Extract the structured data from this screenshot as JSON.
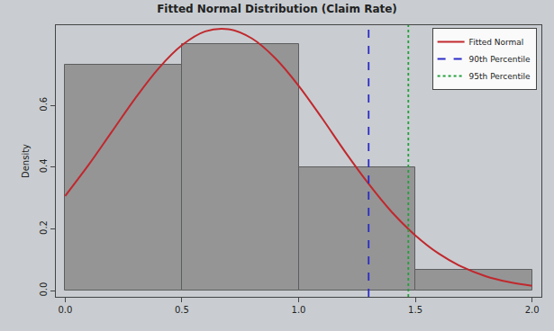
{
  "chart_data": {
    "type": "histogram",
    "title": "Fitted Normal Distribution (Claim Rate)",
    "y_label": "Density",
    "bins": [
      0,
      0.5,
      1,
      1.5,
      2
    ],
    "values": [
      0.733,
      0.8,
      0.4,
      0.067
    ],
    "color": "#8c8c8c",
    "series": [
      {
        "name": "Fitted Normal",
        "type": "line",
        "color": "#c0282d",
        "line_style": "solid",
        "x": [
          0,
          0.1,
          0.2,
          0.3,
          0.4,
          0.5,
          0.6,
          0.7,
          0.8,
          0.9,
          1.0,
          1.1,
          1.2,
          1.3,
          1.4,
          1.5,
          1.6,
          1.7,
          1.8,
          1.9,
          2.0
        ],
        "values": [
          0.307,
          0.407,
          0.515,
          0.623,
          0.72,
          0.795,
          0.84,
          0.847,
          0.817,
          0.753,
          0.664,
          0.559,
          0.449,
          0.346,
          0.254,
          0.179,
          0.12,
          0.077,
          0.047,
          0.028,
          0.016
        ]
      },
      {
        "name": "90th Percentile",
        "type": "vline",
        "color": "#2b2bc8",
        "line_style": "dash",
        "x": [
          1.3
        ]
      },
      {
        "name": "95th Percentile",
        "type": "vline",
        "color": "#22a03a",
        "line_style": "dot",
        "x": [
          1.47
        ]
      }
    ],
    "xlim": [
      -0.04,
      2.04
    ],
    "ylim": [
      -0.02,
      0.86
    ],
    "xticks": [
      {
        "value": 0,
        "label": "0.0"
      },
      0.5,
      {
        "value": 1,
        "label": "1.0"
      },
      1.5,
      {
        "value": 2,
        "label": "2.0"
      }
    ],
    "yticks": [
      {
        "value": 0,
        "label": "0.0"
      },
      0.2,
      0.4,
      0.6
    ],
    "legend": "top-right",
    "grid": false
  }
}
